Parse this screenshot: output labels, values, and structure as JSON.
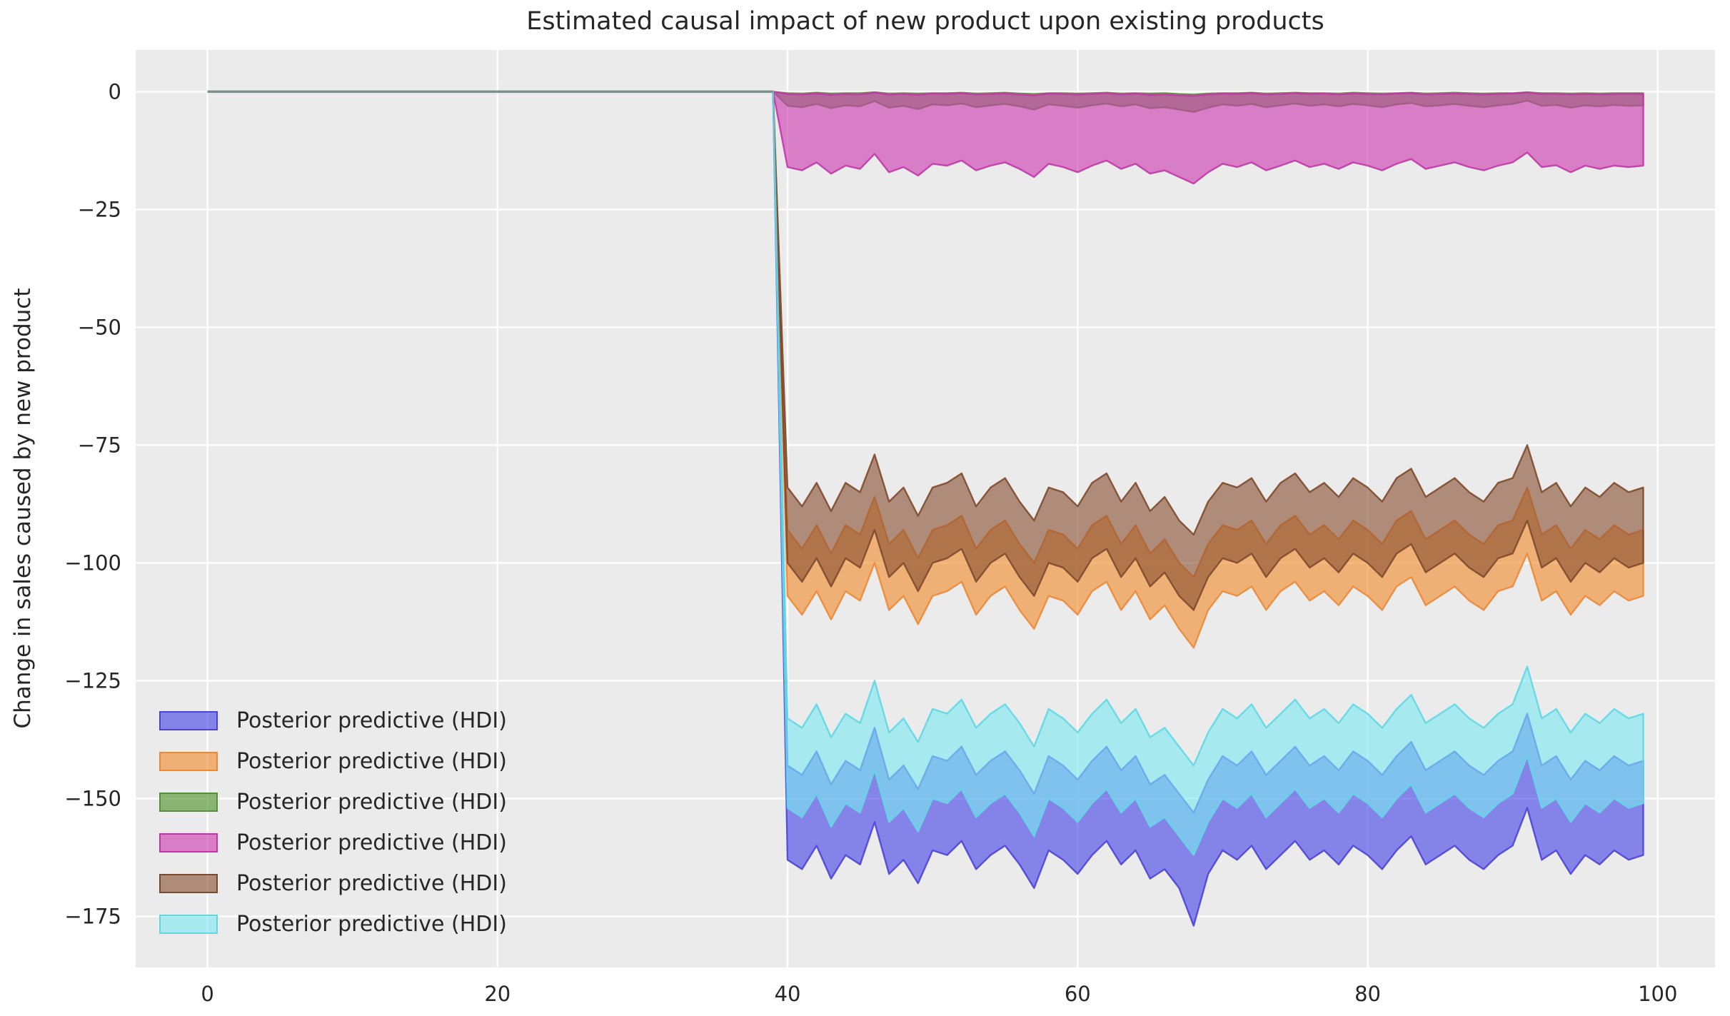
{
  "title": "Estimated causal impact of new product upon existing products",
  "ylabel": "Change in sales caused by new product",
  "colors": {
    "figure_background": "#ffffff",
    "axes_background": "#ebebeb",
    "grid": "#ffffff",
    "text": "#262626",
    "pre_period_line": "#7e908e"
  },
  "legend": {
    "items": [
      {
        "key": "blue",
        "label": "Posterior predictive (HDI)",
        "fill": "rgba(68,68,230,0.62)",
        "edge": "#4b42dd"
      },
      {
        "key": "orange",
        "label": "Posterior predictive (HDI)",
        "fill": "rgba(242,140,45,0.62)",
        "edge": "#ee8833"
      },
      {
        "key": "green",
        "label": "Posterior predictive (HDI)",
        "fill": "rgba(85,150,50,0.66)",
        "edge": "#55903a"
      },
      {
        "key": "pink",
        "label": "Posterior predictive (HDI)",
        "fill": "rgba(204,59,176,0.62)",
        "edge": "#c634ac"
      },
      {
        "key": "brown",
        "label": "Posterior predictive (HDI)",
        "fill": "rgba(138,80,52,0.62)",
        "edge": "#7c4a2d"
      },
      {
        "key": "cyan",
        "label": "Posterior predictive (HDI)",
        "fill": "rgba(125,232,240,0.62)",
        "edge": "#63d6e4"
      }
    ]
  },
  "chart_data": {
    "type": "area",
    "title": "Estimated causal impact of new product upon existing products",
    "xlabel": "",
    "ylabel": "Change in sales caused by new product",
    "xlim": [
      -4.95,
      103.95
    ],
    "ylim": [
      -185.85,
      8.85
    ],
    "grid": true,
    "legend_position": "lower left",
    "x_ticks": {
      "values": [
        0,
        20,
        40,
        60,
        80,
        100
      ],
      "labels": [
        "0",
        "20",
        "40",
        "60",
        "80",
        "100"
      ]
    },
    "y_ticks": {
      "values": [
        0,
        -25,
        -50,
        -75,
        -100,
        -125,
        -150,
        -175
      ],
      "labels": [
        "0",
        "−25",
        "−50",
        "−75",
        "−100",
        "−125",
        "−150",
        "−175"
      ]
    },
    "pre_period": {
      "x_start": 0,
      "x_end": 39,
      "value": 0
    },
    "intervention_x": 40,
    "x_post_start": 40,
    "x_post_end": 99,
    "series": [
      {
        "name": "Posterior predictive (HDI)",
        "key": "blue",
        "fill": "rgba(68,68,230,0.62)",
        "edge": "#4b42dd",
        "upper": [
          -143,
          -145,
          -140,
          -147,
          -142,
          -144,
          -135,
          -146,
          -143,
          -148,
          -141,
          -142,
          -139,
          -145,
          -142,
          -140,
          -144,
          -149,
          -141,
          -143,
          -146,
          -142,
          -139,
          -144,
          -141,
          -147,
          -145,
          -149,
          -153,
          -146,
          -141,
          -143,
          -140,
          -145,
          -142,
          -139,
          -143,
          -141,
          -144,
          -140,
          -142,
          -145,
          -141,
          -138,
          -144,
          -142,
          -140,
          -143,
          -145,
          -142,
          -140,
          -132,
          -143,
          -141,
          -146,
          -142,
          -144,
          -141,
          -143,
          -142
        ],
        "lower": [
          -163,
          -165,
          -160,
          -167,
          -162,
          -164,
          -155,
          -166,
          -163,
          -168,
          -161,
          -162,
          -159,
          -165,
          -162,
          -160,
          -164,
          -169,
          -161,
          -163,
          -166,
          -162,
          -159,
          -164,
          -161,
          -167,
          -165,
          -169,
          -177,
          -166,
          -161,
          -163,
          -160,
          -165,
          -162,
          -159,
          -163,
          -161,
          -164,
          -160,
          -162,
          -165,
          -161,
          -158,
          -164,
          -162,
          -160,
          -163,
          -165,
          -162,
          -160,
          -152,
          -163,
          -161,
          -166,
          -162,
          -164,
          -161,
          -163,
          -162
        ]
      },
      {
        "name": "Posterior predictive (HDI)",
        "key": "orange",
        "fill": "rgba(242,140,45,0.62)",
        "edge": "#ee8833",
        "upper": [
          -93,
          -97,
          -92,
          -98,
          -92,
          -94,
          -86,
          -96,
          -93,
          -99,
          -93,
          -92,
          -90,
          -97,
          -93,
          -91,
          -96,
          -100,
          -93,
          -94,
          -97,
          -92,
          -90,
          -96,
          -92,
          -98,
          -95,
          -100,
          -103,
          -96,
          -92,
          -93,
          -91,
          -96,
          -92,
          -90,
          -94,
          -92,
          -95,
          -91,
          -93,
          -96,
          -91,
          -89,
          -95,
          -93,
          -91,
          -94,
          -96,
          -92,
          -91,
          -84,
          -94,
          -92,
          -97,
          -93,
          -95,
          -92,
          -94,
          -93
        ],
        "lower": [
          -107,
          -111,
          -106,
          -112,
          -106,
          -108,
          -100,
          -110,
          -107,
          -113,
          -107,
          -106,
          -104,
          -111,
          -107,
          -105,
          -110,
          -114,
          -107,
          -108,
          -111,
          -106,
          -104,
          -110,
          -106,
          -112,
          -109,
          -114,
          -118,
          -110,
          -106,
          -107,
          -105,
          -110,
          -106,
          -104,
          -108,
          -106,
          -109,
          -105,
          -107,
          -110,
          -105,
          -103,
          -109,
          -107,
          -105,
          -108,
          -110,
          -106,
          -105,
          -98,
          -108,
          -106,
          -111,
          -107,
          -109,
          -106,
          -108,
          -107
        ]
      },
      {
        "name": "Posterior predictive (HDI)",
        "key": "green",
        "fill": "rgba(85,150,50,0.66)",
        "edge": "#55903a",
        "upper": [
          -0.3,
          -0.4,
          -0.2,
          -0.4,
          -0.3,
          -0.3,
          -0.1,
          -0.4,
          -0.3,
          -0.4,
          -0.3,
          -0.3,
          -0.2,
          -0.4,
          -0.3,
          -0.2,
          -0.4,
          -0.5,
          -0.3,
          -0.3,
          -0.4,
          -0.3,
          -0.2,
          -0.4,
          -0.3,
          -0.4,
          -0.3,
          -0.5,
          -0.6,
          -0.4,
          -0.3,
          -0.3,
          -0.2,
          -0.4,
          -0.3,
          -0.2,
          -0.3,
          -0.3,
          -0.4,
          -0.2,
          -0.3,
          -0.4,
          -0.3,
          -0.2,
          -0.4,
          -0.3,
          -0.2,
          -0.3,
          -0.4,
          -0.3,
          -0.3,
          -0.1,
          -0.3,
          -0.3,
          -0.4,
          -0.3,
          -0.4,
          -0.3,
          -0.3,
          -0.3
        ],
        "lower": [
          -3.0,
          -3.3,
          -2.6,
          -3.5,
          -2.9,
          -3.1,
          -2.0,
          -3.4,
          -3.0,
          -3.7,
          -2.7,
          -2.9,
          -2.5,
          -3.3,
          -2.9,
          -2.6,
          -3.1,
          -3.8,
          -2.7,
          -3.0,
          -3.4,
          -2.9,
          -2.5,
          -3.1,
          -2.7,
          -3.5,
          -3.3,
          -3.8,
          -4.3,
          -3.4,
          -2.7,
          -3.0,
          -2.6,
          -3.3,
          -2.9,
          -2.5,
          -3.0,
          -2.7,
          -3.1,
          -2.6,
          -2.9,
          -3.3,
          -2.7,
          -2.4,
          -3.1,
          -2.9,
          -2.6,
          -3.0,
          -3.3,
          -2.9,
          -2.6,
          -1.9,
          -3.0,
          -2.8,
          -3.4,
          -2.9,
          -3.1,
          -2.8,
          -3.0,
          -2.9
        ]
      },
      {
        "name": "Posterior predictive (HDI)",
        "key": "pink",
        "fill": "rgba(204,59,176,0.62)",
        "edge": "#c634ac",
        "upper": [
          -0.5,
          -0.6,
          -0.4,
          -0.7,
          -0.5,
          -0.6,
          -0.2,
          -0.6,
          -0.5,
          -0.7,
          -0.4,
          -0.5,
          -0.3,
          -0.6,
          -0.5,
          -0.4,
          -0.6,
          -0.8,
          -0.4,
          -0.5,
          -0.6,
          -0.5,
          -0.3,
          -0.6,
          -0.4,
          -0.7,
          -0.6,
          -0.8,
          -0.9,
          -0.6,
          -0.4,
          -0.5,
          -0.3,
          -0.6,
          -0.5,
          -0.3,
          -0.5,
          -0.4,
          -0.6,
          -0.4,
          -0.5,
          -0.6,
          -0.4,
          -0.3,
          -0.6,
          -0.5,
          -0.4,
          -0.5,
          -0.6,
          -0.5,
          -0.4,
          -0.2,
          -0.5,
          -0.5,
          -0.6,
          -0.5,
          -0.6,
          -0.5,
          -0.5,
          -0.5
        ],
        "lower": [
          -16.0,
          -16.7,
          -15.0,
          -17.4,
          -15.7,
          -16.4,
          -13.2,
          -17.1,
          -16.0,
          -17.8,
          -15.3,
          -15.7,
          -14.6,
          -16.7,
          -15.7,
          -15.0,
          -16.4,
          -18.1,
          -15.3,
          -16.0,
          -17.1,
          -15.7,
          -14.6,
          -16.4,
          -15.3,
          -17.4,
          -16.7,
          -18.1,
          -19.5,
          -17.1,
          -15.3,
          -16.0,
          -15.0,
          -16.7,
          -15.7,
          -14.6,
          -16.0,
          -15.3,
          -16.4,
          -15.0,
          -15.7,
          -16.7,
          -15.3,
          -14.3,
          -16.4,
          -15.7,
          -15.0,
          -16.0,
          -16.7,
          -15.7,
          -15.0,
          -12.9,
          -16.0,
          -15.6,
          -17.1,
          -15.7,
          -16.4,
          -15.7,
          -16.0,
          -15.7
        ]
      },
      {
        "name": "Posterior predictive (HDI)",
        "key": "brown",
        "fill": "rgba(138,80,52,0.62)",
        "edge": "#7c4a2d",
        "upper": [
          -84,
          -88,
          -83,
          -89,
          -83,
          -85,
          -77,
          -87,
          -84,
          -90,
          -84,
          -83,
          -81,
          -88,
          -84,
          -82,
          -87,
          -91,
          -84,
          -85,
          -88,
          -83,
          -81,
          -87,
          -83,
          -89,
          -86,
          -91,
          -94,
          -87,
          -83,
          -84,
          -82,
          -87,
          -83,
          -81,
          -85,
          -83,
          -86,
          -82,
          -84,
          -87,
          -82,
          -80,
          -86,
          -84,
          -82,
          -85,
          -87,
          -83,
          -82,
          -75,
          -85,
          -83,
          -88,
          -84,
          -86,
          -83,
          -85,
          -84
        ],
        "lower": [
          -100,
          -104,
          -99,
          -105,
          -99,
          -101,
          -93,
          -103,
          -100,
          -106,
          -100,
          -99,
          -97,
          -104,
          -100,
          -98,
          -103,
          -107,
          -100,
          -101,
          -104,
          -99,
          -97,
          -103,
          -99,
          -105,
          -102,
          -107,
          -110,
          -103,
          -99,
          -100,
          -98,
          -103,
          -99,
          -97,
          -101,
          -99,
          -102,
          -98,
          -100,
          -103,
          -98,
          -96,
          -102,
          -100,
          -98,
          -101,
          -103,
          -99,
          -98,
          -91,
          -101,
          -99,
          -104,
          -100,
          -102,
          -99,
          -101,
          -100
        ]
      },
      {
        "name": "Posterior predictive (HDI)",
        "key": "cyan",
        "fill": "rgba(125,232,240,0.62)",
        "edge": "#63d6e4",
        "upper": [
          -133,
          -135,
          -130,
          -137,
          -132,
          -134,
          -125,
          -136,
          -133,
          -138,
          -131,
          -132,
          -129,
          -135,
          -132,
          -130,
          -134,
          -139,
          -131,
          -133,
          -136,
          -132,
          -129,
          -134,
          -131,
          -137,
          -135,
          -139,
          -143,
          -136,
          -131,
          -133,
          -130,
          -135,
          -132,
          -129,
          -133,
          -131,
          -134,
          -130,
          -132,
          -135,
          -131,
          -128,
          -134,
          -132,
          -130,
          -133,
          -135,
          -132,
          -130,
          -122,
          -133,
          -131,
          -136,
          -132,
          -134,
          -131,
          -133,
          -132
        ],
        "lower": [
          -152,
          -154,
          -149,
          -156,
          -151,
          -153,
          -144,
          -155,
          -152,
          -157,
          -150,
          -151,
          -148,
          -154,
          -151,
          -149,
          -153,
          -158,
          -150,
          -152,
          -155,
          -151,
          -148,
          -153,
          -150,
          -156,
          -154,
          -158,
          -162,
          -155,
          -150,
          -152,
          -149,
          -154,
          -151,
          -148,
          -152,
          -150,
          -153,
          -149,
          -151,
          -154,
          -150,
          -147,
          -153,
          -151,
          -149,
          -152,
          -154,
          -151,
          -149,
          -141,
          -152,
          -150,
          -155,
          -151,
          -153,
          -150,
          -152,
          -151
        ]
      }
    ]
  }
}
